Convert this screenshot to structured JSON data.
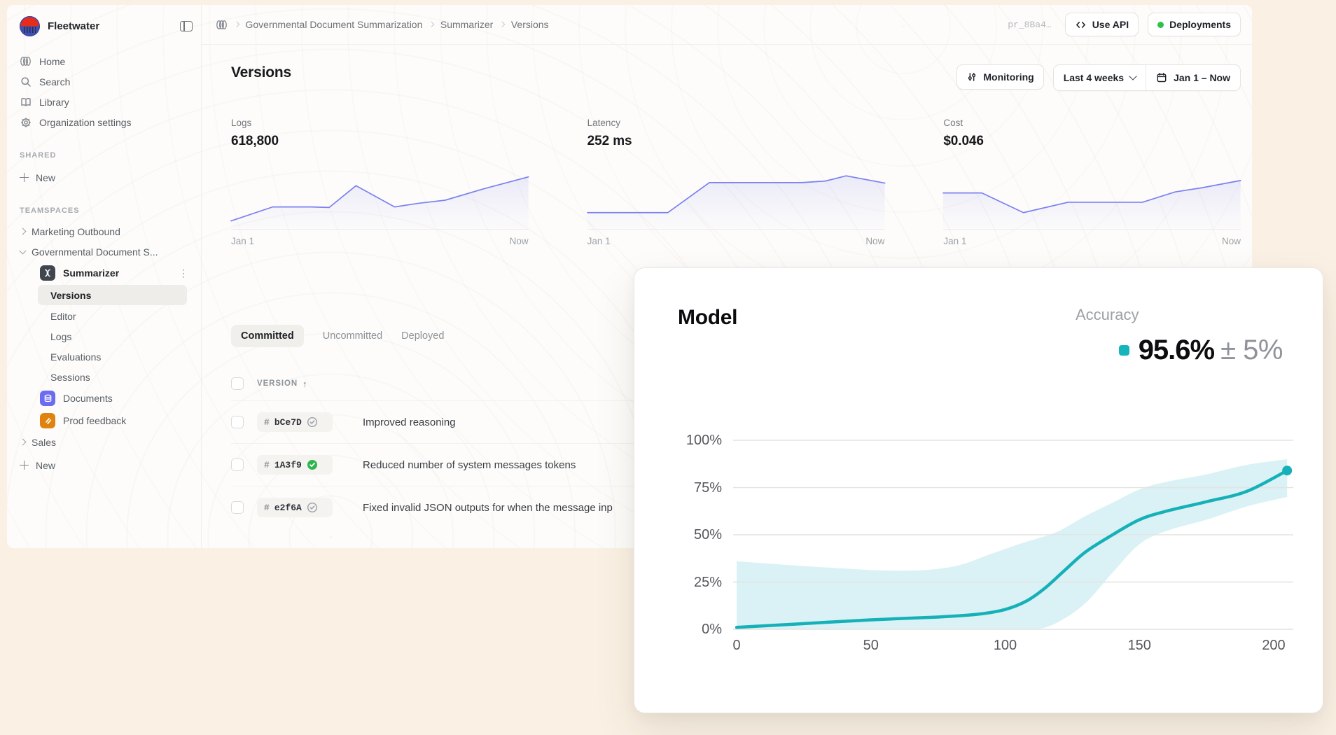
{
  "colors": {
    "canvas": "#faf1e4",
    "accent": "#7b80f0",
    "teal": "#16b1b8",
    "band": "#daf2f5",
    "green": "#2db64e"
  },
  "sidebar": {
    "brand": "Fleetwater",
    "nav": [
      {
        "label": "Home"
      },
      {
        "label": "Search"
      },
      {
        "label": "Library"
      },
      {
        "label": "Organization settings"
      }
    ],
    "shared_title": "SHARED",
    "shared_new": "New",
    "teamspaces_title": "TEAMSPACES",
    "marketing": "Marketing Outbound",
    "governmental": "Governmental Document S...",
    "summarizer": "Summarizer",
    "summarizer_children": [
      "Versions",
      "Editor",
      "Logs",
      "Evaluations",
      "Sessions"
    ],
    "documents": "Documents",
    "prod_feedback": "Prod feedback",
    "sales": "Sales",
    "new_bottom": "New"
  },
  "topbar": {
    "breadcrumb": [
      "Governmental Document Summarization",
      "Summarizer",
      "Versions"
    ],
    "project_id": "pr_8Ba4…",
    "use_api": "Use API",
    "deployments": "Deployments"
  },
  "header": {
    "title": "Versions",
    "monitoring": "Monitoring",
    "range": "Last 4 weeks",
    "date_range": "Jan 1 – Now"
  },
  "metrics": {
    "cards": [
      {
        "label": "Logs",
        "value": "618,800",
        "start": "Jan 1",
        "end": "Now",
        "trend": [
          [
            0,
            0.1
          ],
          [
            0.14,
            0.37
          ],
          [
            0.27,
            0.37
          ],
          [
            0.33,
            0.36
          ],
          [
            0.42,
            0.78
          ],
          [
            0.55,
            0.37
          ],
          [
            0.63,
            0.44
          ],
          [
            0.72,
            0.5
          ],
          [
            0.85,
            0.72
          ],
          [
            1,
            0.95
          ]
        ]
      },
      {
        "label": "Latency",
        "value": "252 ms",
        "start": "Jan 1",
        "end": "Now",
        "trend": [
          [
            0,
            0.26
          ],
          [
            0.27,
            0.26
          ],
          [
            0.41,
            0.84
          ],
          [
            0.72,
            0.84
          ],
          [
            0.8,
            0.87
          ],
          [
            0.87,
            0.97
          ],
          [
            1,
            0.83
          ]
        ]
      },
      {
        "label": "Cost",
        "value": "$0.046",
        "start": "Jan 1",
        "end": "Now",
        "trend": [
          [
            0,
            0.64
          ],
          [
            0.13,
            0.64
          ],
          [
            0.27,
            0.26
          ],
          [
            0.42,
            0.46
          ],
          [
            0.67,
            0.46
          ],
          [
            0.78,
            0.66
          ],
          [
            0.87,
            0.74
          ],
          [
            1,
            0.88
          ]
        ]
      }
    ]
  },
  "tabs": {
    "items": [
      "Committed",
      "Uncommitted",
      "Deployed"
    ],
    "active": "Committed"
  },
  "table": {
    "column": "VERSION",
    "sort_indicator": "↑",
    "hash": "#",
    "rows": [
      {
        "id": "bCe7D",
        "status": "committed",
        "description": "Improved reasoning"
      },
      {
        "id": "1A3f9",
        "status": "deployed",
        "description": "Reduced number of system messages tokens"
      },
      {
        "id": "e2f6A",
        "status": "committed",
        "description": "Fixed invalid JSON outputs for when the message inp"
      }
    ]
  },
  "model_card": {
    "title": "Model",
    "metric_label": "Accuracy",
    "value": "95.6%",
    "tolerance": "± 5%"
  },
  "chart_data": {
    "type": "line",
    "title": "Model Accuracy",
    "xlabel": "",
    "ylabel": "Accuracy (%)",
    "x_ticks": [
      "0",
      "50",
      "100",
      "150",
      "200"
    ],
    "y_ticks": [
      "100%",
      "75%",
      "50%",
      "25%",
      "0%"
    ],
    "xlim": [
      0,
      205
    ],
    "ylim": [
      0,
      100
    ],
    "grid": true,
    "band_color": "#daf2f5",
    "series": [
      {
        "name": "Accuracy",
        "color": "#16b1b8",
        "points": [
          [
            0,
            1
          ],
          [
            25,
            3
          ],
          [
            50,
            5
          ],
          [
            75,
            6.5
          ],
          [
            90,
            8
          ],
          [
            100,
            10.5
          ],
          [
            108,
            15
          ],
          [
            115,
            22
          ],
          [
            122,
            31
          ],
          [
            130,
            41
          ],
          [
            140,
            50
          ],
          [
            150,
            58
          ],
          [
            160,
            62.5
          ],
          [
            175,
            67.5
          ],
          [
            190,
            73
          ],
          [
            205,
            84
          ]
        ]
      }
    ],
    "band": [
      [
        0,
        0,
        36
      ],
      [
        30,
        0,
        33
      ],
      [
        60,
        0,
        31
      ],
      [
        80,
        0,
        33
      ],
      [
        95,
        0,
        40
      ],
      [
        105,
        0,
        45
      ],
      [
        112,
        0,
        48
      ],
      [
        120,
        4,
        52
      ],
      [
        130,
        14,
        60
      ],
      [
        140,
        30,
        67
      ],
      [
        150,
        45,
        74
      ],
      [
        160,
        52,
        78
      ],
      [
        175,
        58,
        82
      ],
      [
        190,
        65,
        87
      ],
      [
        205,
        70,
        90
      ]
    ],
    "end_dot": true
  }
}
